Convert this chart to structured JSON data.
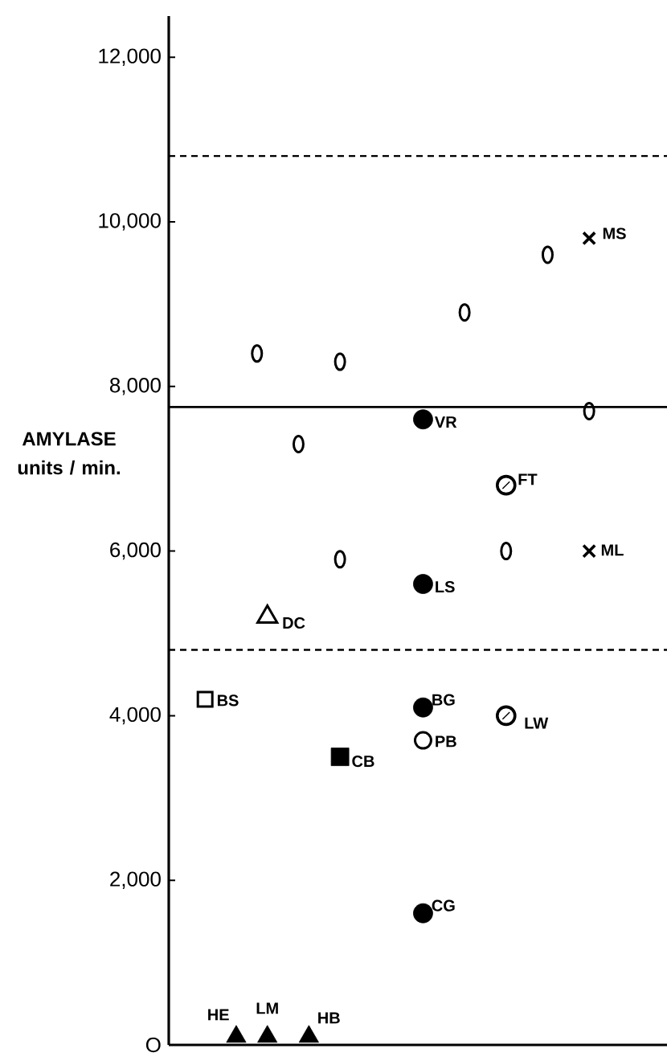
{
  "chart_data": {
    "type": "scatter",
    "ylabel": "AMYLASE units / min.",
    "categories": [
      null,
      null,
      null,
      null,
      null,
      null,
      null,
      null,
      null,
      null,
      null,
      null,
      null,
      null,
      null,
      null,
      null,
      null,
      null,
      null,
      null,
      null,
      null,
      null,
      null,
      null,
      null,
      null,
      null,
      null,
      null,
      null,
      null,
      null,
      null,
      null,
      null,
      null,
      null,
      null,
      null,
      null,
      null,
      null,
      null,
      null,
      null,
      null
    ],
    "ylim": [
      0,
      12500
    ],
    "yticks": [
      {
        "value": 0,
        "label": "O"
      },
      {
        "value": 2000,
        "label": "2,000"
      },
      {
        "value": 4000,
        "label": "4,000"
      },
      {
        "value": 6000,
        "label": "6,000"
      },
      {
        "value": 8000,
        "label": "8,000"
      },
      {
        "value": 10000,
        "label": "10,000"
      },
      {
        "value": 12000,
        "label": "12,000"
      }
    ],
    "series": [
      {
        "color": "#000000",
        "marker": "circle-oval",
        "values": [
          null,
          null,
          null,
          null,
          null,
          null,
          null,
          null,
          8400,
          null,
          null,
          null,
          7300,
          null,
          null,
          null,
          8300,
          null,
          null,
          null,
          null,
          null,
          null,
          null,
          null,
          null,
          null,
          null,
          8900,
          null,
          null,
          null,
          6000,
          null,
          null,
          null,
          9600,
          null,
          null,
          null,
          7700,
          null,
          null,
          null,
          null,
          null,
          null,
          null
        ]
      },
      {
        "color": "#000000",
        "marker": "circle-oval",
        "values": [
          null,
          null,
          null,
          null,
          null,
          null,
          null,
          null,
          null,
          null,
          null,
          null,
          null,
          null,
          null,
          null,
          5900,
          null,
          null,
          null,
          null,
          null,
          null,
          null,
          null,
          null,
          null,
          null,
          null,
          null,
          null,
          null,
          null,
          null,
          null,
          null,
          null,
          null,
          null,
          null,
          null,
          null,
          null,
          null,
          null,
          null,
          null,
          null
        ]
      },
      {
        "name": "MS",
        "color": "#000000",
        "marker": "cross",
        "values": [
          null,
          null,
          null,
          null,
          null,
          null,
          null,
          null,
          null,
          null,
          null,
          null,
          null,
          null,
          null,
          null,
          null,
          null,
          null,
          null,
          null,
          null,
          null,
          null,
          null,
          null,
          null,
          null,
          null,
          null,
          null,
          null,
          null,
          null,
          null,
          null,
          null,
          null,
          null,
          null,
          9800,
          null,
          null,
          null,
          null,
          null,
          null,
          null
        ]
      },
      {
        "name": "VR",
        "color": "#000000",
        "marker": "circle",
        "values": [
          null,
          null,
          null,
          null,
          null,
          null,
          null,
          null,
          null,
          null,
          null,
          null,
          null,
          null,
          null,
          null,
          null,
          null,
          null,
          null,
          null,
          null,
          null,
          null,
          7600,
          null,
          null,
          null,
          null,
          null,
          null,
          null,
          null,
          null,
          null,
          null,
          null,
          null,
          null,
          null,
          null,
          null,
          null,
          null,
          null,
          null,
          null,
          null
        ]
      },
      {
        "name": "FT",
        "color": "#000000",
        "values": [
          null,
          null,
          null,
          null,
          null,
          null,
          null,
          null,
          null,
          null,
          null,
          null,
          null,
          null,
          null,
          null,
          null,
          null,
          null,
          null,
          null,
          null,
          null,
          null,
          null,
          null,
          null,
          null,
          null,
          null,
          null,
          null,
          6800,
          null,
          null,
          null,
          null,
          null,
          null,
          null,
          null,
          null,
          null,
          null,
          null,
          null,
          null,
          null
        ]
      },
      {
        "name": "ML",
        "color": "#000000",
        "marker": "cross",
        "values": [
          null,
          null,
          null,
          null,
          null,
          null,
          null,
          null,
          null,
          null,
          null,
          null,
          null,
          null,
          null,
          null,
          null,
          null,
          null,
          null,
          null,
          null,
          null,
          null,
          null,
          null,
          null,
          null,
          null,
          null,
          null,
          null,
          null,
          null,
          null,
          null,
          null,
          null,
          null,
          null,
          6000,
          null,
          null,
          null,
          null,
          null,
          null,
          null
        ]
      },
      {
        "name": "LS",
        "color": "#000000",
        "marker": "circle",
        "values": [
          null,
          null,
          null,
          null,
          null,
          null,
          null,
          null,
          null,
          null,
          null,
          null,
          null,
          null,
          null,
          null,
          null,
          null,
          null,
          null,
          null,
          null,
          null,
          null,
          5600,
          null,
          null,
          null,
          null,
          null,
          null,
          null,
          null,
          null,
          null,
          null,
          null,
          null,
          null,
          null,
          null,
          null,
          null,
          null,
          null,
          null,
          null,
          null
        ]
      },
      {
        "name": "DC",
        "color": "#000000",
        "marker": "triangle-open",
        "values": [
          null,
          null,
          null,
          null,
          null,
          null,
          null,
          null,
          null,
          5200,
          null,
          null,
          null,
          null,
          null,
          null,
          null,
          null,
          null,
          null,
          null,
          null,
          null,
          null,
          null,
          null,
          null,
          null,
          null,
          null,
          null,
          null,
          null,
          null,
          null,
          null,
          null,
          null,
          null,
          null,
          null,
          null,
          null,
          null,
          null,
          null,
          null,
          null
        ]
      },
      {
        "name": "BS",
        "color": "#000000",
        "marker": "square-open",
        "values": [
          null,
          null,
          null,
          4200,
          null,
          null,
          null,
          null,
          null,
          null,
          null,
          null,
          null,
          null,
          null,
          null,
          null,
          null,
          null,
          null,
          null,
          null,
          null,
          null,
          null,
          null,
          null,
          null,
          null,
          null,
          null,
          null,
          null,
          null,
          null,
          null,
          null,
          null,
          null,
          null,
          null,
          null,
          null,
          null,
          null,
          null,
          null,
          null
        ]
      },
      {
        "name": "BG",
        "color": "#000000",
        "marker": "circle",
        "values": [
          null,
          null,
          null,
          null,
          null,
          null,
          null,
          null,
          null,
          null,
          null,
          null,
          null,
          null,
          null,
          null,
          null,
          null,
          null,
          null,
          null,
          null,
          null,
          null,
          4100,
          null,
          null,
          null,
          null,
          null,
          null,
          null,
          null,
          null,
          null,
          null,
          null,
          null,
          null,
          null,
          null,
          null,
          null,
          null,
          null,
          null,
          null,
          null
        ]
      },
      {
        "name": "LW",
        "color": "#000000",
        "values": [
          null,
          null,
          null,
          null,
          null,
          null,
          null,
          null,
          null,
          null,
          null,
          null,
          null,
          null,
          null,
          null,
          null,
          null,
          null,
          null,
          null,
          null,
          null,
          null,
          null,
          null,
          null,
          null,
          null,
          null,
          null,
          null,
          4000,
          null,
          null,
          null,
          null,
          null,
          null,
          null,
          null,
          null,
          null,
          null,
          null,
          null,
          null,
          null
        ]
      },
      {
        "name": "PB",
        "color": "#000000",
        "marker": "circle-open",
        "values": [
          null,
          null,
          null,
          null,
          null,
          null,
          null,
          null,
          null,
          null,
          null,
          null,
          null,
          null,
          null,
          null,
          null,
          null,
          null,
          null,
          null,
          null,
          null,
          null,
          3700,
          null,
          null,
          null,
          null,
          null,
          null,
          null,
          null,
          null,
          null,
          null,
          null,
          null,
          null,
          null,
          null,
          null,
          null,
          null,
          null,
          null,
          null,
          null
        ]
      },
      {
        "name": "CB",
        "color": "#000000",
        "marker": "square",
        "values": [
          null,
          null,
          null,
          null,
          null,
          null,
          null,
          null,
          null,
          null,
          null,
          null,
          null,
          null,
          null,
          null,
          3500,
          null,
          null,
          null,
          null,
          null,
          null,
          null,
          null,
          null,
          null,
          null,
          null,
          null,
          null,
          null,
          null,
          null,
          null,
          null,
          null,
          null,
          null,
          null,
          null,
          null,
          null,
          null,
          null,
          null,
          null,
          null
        ]
      },
      {
        "name": "CG",
        "color": "#000000",
        "marker": "circle",
        "values": [
          null,
          null,
          null,
          null,
          null,
          null,
          null,
          null,
          null,
          null,
          null,
          null,
          null,
          null,
          null,
          null,
          null,
          null,
          null,
          null,
          null,
          null,
          null,
          null,
          1600,
          null,
          null,
          null,
          null,
          null,
          null,
          null,
          null,
          null,
          null,
          null,
          null,
          null,
          null,
          null,
          null,
          null,
          null,
          null,
          null,
          null,
          null,
          null
        ]
      },
      {
        "name": "HE",
        "color": "#000000",
        "marker": "triangle",
        "values": [
          null,
          null,
          null,
          null,
          null,
          null,
          100,
          null,
          null,
          null,
          null,
          null,
          null,
          null,
          null,
          null,
          null,
          null,
          null,
          null,
          null,
          null,
          null,
          null,
          null,
          null,
          null,
          null,
          null,
          null,
          null,
          null,
          null,
          null,
          null,
          null,
          null,
          null,
          null,
          null,
          null,
          null,
          null,
          null,
          null,
          null,
          null,
          null
        ]
      },
      {
        "name": "LM",
        "color": "#000000",
        "marker": "triangle",
        "values": [
          null,
          null,
          null,
          null,
          null,
          null,
          null,
          null,
          null,
          100,
          null,
          null,
          null,
          null,
          null,
          null,
          null,
          null,
          null,
          null,
          null,
          null,
          null,
          null,
          null,
          null,
          null,
          null,
          null,
          null,
          null,
          null,
          null,
          null,
          null,
          null,
          null,
          null,
          null,
          null,
          null,
          null,
          null,
          null,
          null,
          null,
          null,
          null
        ]
      },
      {
        "name": "HB",
        "color": "#000000",
        "marker": "triangle",
        "values": [
          null,
          null,
          null,
          null,
          null,
          null,
          null,
          null,
          null,
          null,
          null,
          null,
          null,
          100,
          null,
          null,
          null,
          null,
          null,
          null,
          null,
          null,
          null,
          null,
          null,
          null,
          null,
          null,
          null,
          null,
          null,
          null,
          null,
          null,
          null,
          null,
          null,
          null,
          null,
          null,
          null,
          null,
          null,
          null,
          null,
          null,
          null,
          null
        ]
      }
    ],
    "ref_lines": [
      {
        "axis": "y",
        "value": 10800,
        "line_style": "dashed"
      },
      {
        "axis": "y",
        "value": 7750,
        "line_style": "solid"
      },
      {
        "axis": "y",
        "value": 4800,
        "line_style": "dashed"
      }
    ]
  }
}
